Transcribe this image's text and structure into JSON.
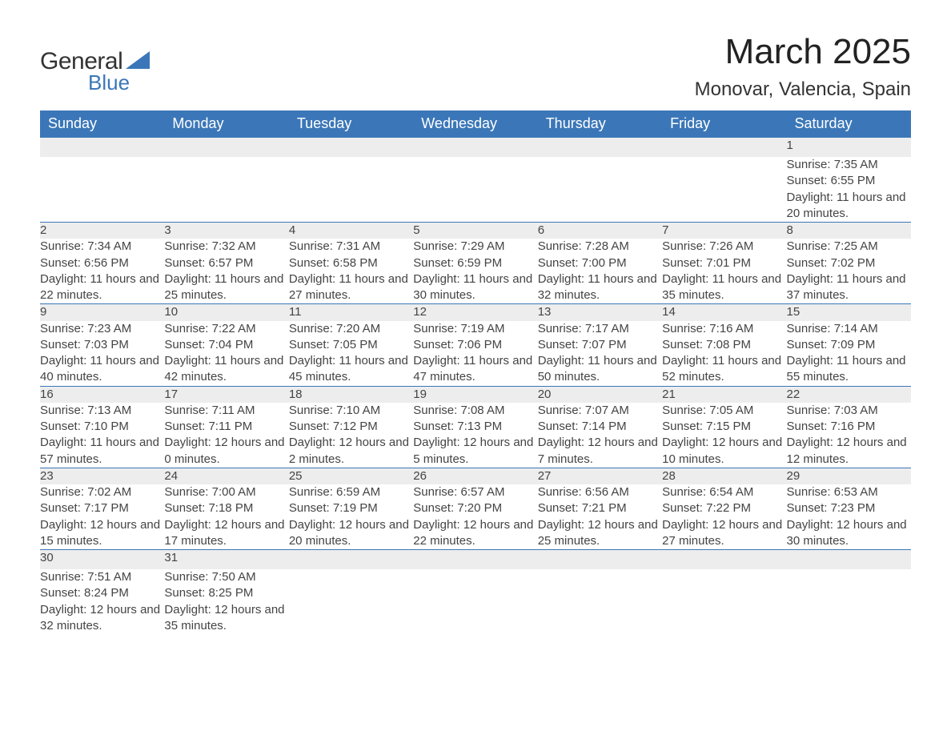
{
  "logo": {
    "text1": "General",
    "text2": "Blue",
    "accent_color": "#3b77b8"
  },
  "title": "March 2025",
  "location": "Monovar, Valencia, Spain",
  "colors": {
    "header_bg": "#3b77b8",
    "header_text": "#ffffff",
    "daynum_bg": "#ededed",
    "border": "#3b77b8",
    "text": "#444444"
  },
  "weekdays": [
    "Sunday",
    "Monday",
    "Tuesday",
    "Wednesday",
    "Thursday",
    "Friday",
    "Saturday"
  ],
  "weeks": [
    [
      null,
      null,
      null,
      null,
      null,
      null,
      {
        "n": "1",
        "rise": "Sunrise: 7:35 AM",
        "set": "Sunset: 6:55 PM",
        "day": "Daylight: 11 hours and 20 minutes."
      }
    ],
    [
      {
        "n": "2",
        "rise": "Sunrise: 7:34 AM",
        "set": "Sunset: 6:56 PM",
        "day": "Daylight: 11 hours and 22 minutes."
      },
      {
        "n": "3",
        "rise": "Sunrise: 7:32 AM",
        "set": "Sunset: 6:57 PM",
        "day": "Daylight: 11 hours and 25 minutes."
      },
      {
        "n": "4",
        "rise": "Sunrise: 7:31 AM",
        "set": "Sunset: 6:58 PM",
        "day": "Daylight: 11 hours and 27 minutes."
      },
      {
        "n": "5",
        "rise": "Sunrise: 7:29 AM",
        "set": "Sunset: 6:59 PM",
        "day": "Daylight: 11 hours and 30 minutes."
      },
      {
        "n": "6",
        "rise": "Sunrise: 7:28 AM",
        "set": "Sunset: 7:00 PM",
        "day": "Daylight: 11 hours and 32 minutes."
      },
      {
        "n": "7",
        "rise": "Sunrise: 7:26 AM",
        "set": "Sunset: 7:01 PM",
        "day": "Daylight: 11 hours and 35 minutes."
      },
      {
        "n": "8",
        "rise": "Sunrise: 7:25 AM",
        "set": "Sunset: 7:02 PM",
        "day": "Daylight: 11 hours and 37 minutes."
      }
    ],
    [
      {
        "n": "9",
        "rise": "Sunrise: 7:23 AM",
        "set": "Sunset: 7:03 PM",
        "day": "Daylight: 11 hours and 40 minutes."
      },
      {
        "n": "10",
        "rise": "Sunrise: 7:22 AM",
        "set": "Sunset: 7:04 PM",
        "day": "Daylight: 11 hours and 42 minutes."
      },
      {
        "n": "11",
        "rise": "Sunrise: 7:20 AM",
        "set": "Sunset: 7:05 PM",
        "day": "Daylight: 11 hours and 45 minutes."
      },
      {
        "n": "12",
        "rise": "Sunrise: 7:19 AM",
        "set": "Sunset: 7:06 PM",
        "day": "Daylight: 11 hours and 47 minutes."
      },
      {
        "n": "13",
        "rise": "Sunrise: 7:17 AM",
        "set": "Sunset: 7:07 PM",
        "day": "Daylight: 11 hours and 50 minutes."
      },
      {
        "n": "14",
        "rise": "Sunrise: 7:16 AM",
        "set": "Sunset: 7:08 PM",
        "day": "Daylight: 11 hours and 52 minutes."
      },
      {
        "n": "15",
        "rise": "Sunrise: 7:14 AM",
        "set": "Sunset: 7:09 PM",
        "day": "Daylight: 11 hours and 55 minutes."
      }
    ],
    [
      {
        "n": "16",
        "rise": "Sunrise: 7:13 AM",
        "set": "Sunset: 7:10 PM",
        "day": "Daylight: 11 hours and 57 minutes."
      },
      {
        "n": "17",
        "rise": "Sunrise: 7:11 AM",
        "set": "Sunset: 7:11 PM",
        "day": "Daylight: 12 hours and 0 minutes."
      },
      {
        "n": "18",
        "rise": "Sunrise: 7:10 AM",
        "set": "Sunset: 7:12 PM",
        "day": "Daylight: 12 hours and 2 minutes."
      },
      {
        "n": "19",
        "rise": "Sunrise: 7:08 AM",
        "set": "Sunset: 7:13 PM",
        "day": "Daylight: 12 hours and 5 minutes."
      },
      {
        "n": "20",
        "rise": "Sunrise: 7:07 AM",
        "set": "Sunset: 7:14 PM",
        "day": "Daylight: 12 hours and 7 minutes."
      },
      {
        "n": "21",
        "rise": "Sunrise: 7:05 AM",
        "set": "Sunset: 7:15 PM",
        "day": "Daylight: 12 hours and 10 minutes."
      },
      {
        "n": "22",
        "rise": "Sunrise: 7:03 AM",
        "set": "Sunset: 7:16 PM",
        "day": "Daylight: 12 hours and 12 minutes."
      }
    ],
    [
      {
        "n": "23",
        "rise": "Sunrise: 7:02 AM",
        "set": "Sunset: 7:17 PM",
        "day": "Daylight: 12 hours and 15 minutes."
      },
      {
        "n": "24",
        "rise": "Sunrise: 7:00 AM",
        "set": "Sunset: 7:18 PM",
        "day": "Daylight: 12 hours and 17 minutes."
      },
      {
        "n": "25",
        "rise": "Sunrise: 6:59 AM",
        "set": "Sunset: 7:19 PM",
        "day": "Daylight: 12 hours and 20 minutes."
      },
      {
        "n": "26",
        "rise": "Sunrise: 6:57 AM",
        "set": "Sunset: 7:20 PM",
        "day": "Daylight: 12 hours and 22 minutes."
      },
      {
        "n": "27",
        "rise": "Sunrise: 6:56 AM",
        "set": "Sunset: 7:21 PM",
        "day": "Daylight: 12 hours and 25 minutes."
      },
      {
        "n": "28",
        "rise": "Sunrise: 6:54 AM",
        "set": "Sunset: 7:22 PM",
        "day": "Daylight: 12 hours and 27 minutes."
      },
      {
        "n": "29",
        "rise": "Sunrise: 6:53 AM",
        "set": "Sunset: 7:23 PM",
        "day": "Daylight: 12 hours and 30 minutes."
      }
    ],
    [
      {
        "n": "30",
        "rise": "Sunrise: 7:51 AM",
        "set": "Sunset: 8:24 PM",
        "day": "Daylight: 12 hours and 32 minutes."
      },
      {
        "n": "31",
        "rise": "Sunrise: 7:50 AM",
        "set": "Sunset: 8:25 PM",
        "day": "Daylight: 12 hours and 35 minutes."
      },
      null,
      null,
      null,
      null,
      null
    ]
  ]
}
